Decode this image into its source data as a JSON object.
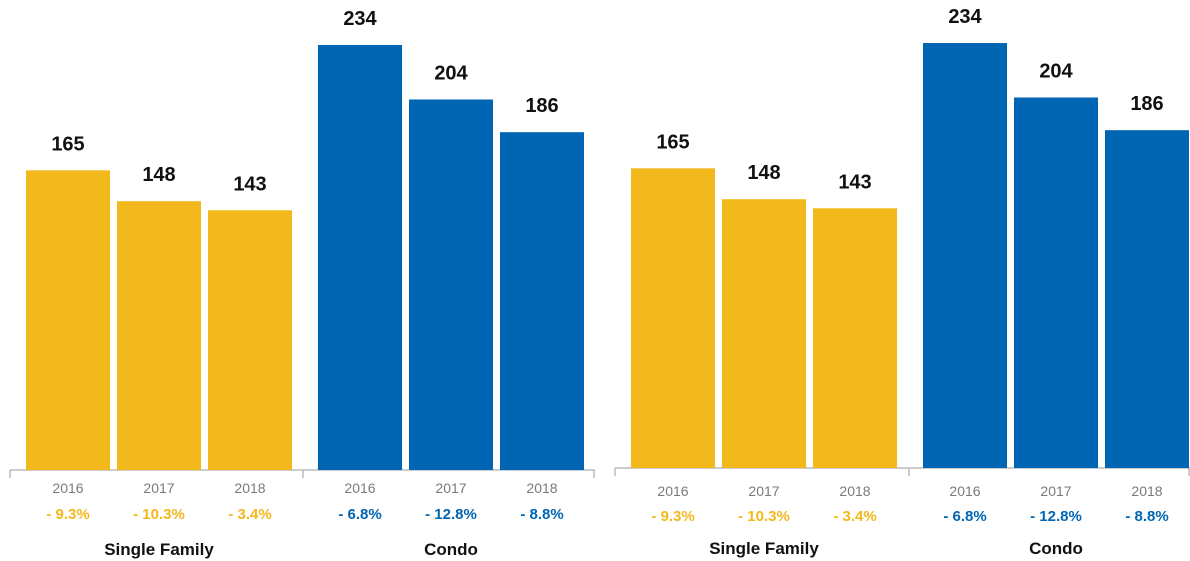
{
  "colors": {
    "single_family": "#F2B81C",
    "condo": "#0066B3",
    "axis": "#BBBBBB"
  },
  "chart_data": [
    {
      "type": "bar",
      "ylim": [
        0,
        260
      ],
      "groups": [
        {
          "name": "Single Family",
          "color": "#F2B81C",
          "categories": [
            "2016",
            "2017",
            "2018"
          ],
          "values": [
            165,
            148,
            143
          ],
          "value_labels": [
            "165",
            "148",
            "143"
          ],
          "changes": [
            "- 9.3%",
            "- 10.3%",
            "- 3.4%"
          ]
        },
        {
          "name": "Condo",
          "color": "#0066B3",
          "categories": [
            "2016",
            "2017",
            "2018"
          ],
          "values": [
            234,
            204,
            186
          ],
          "value_labels": [
            "234",
            "204",
            "186"
          ],
          "changes": [
            "- 6.8%",
            "- 12.8%",
            "- 8.8%"
          ]
        }
      ]
    },
    {
      "type": "bar",
      "ylim": [
        0,
        260
      ],
      "groups": [
        {
          "name": "Single Family",
          "color": "#F2B81C",
          "categories": [
            "2016",
            "2017",
            "2018"
          ],
          "values": [
            165,
            148,
            143
          ],
          "value_labels": [
            "165",
            "148",
            "143"
          ],
          "changes": [
            "- 9.3%",
            "- 10.3%",
            "- 3.4%"
          ]
        },
        {
          "name": "Condo",
          "color": "#0066B3",
          "categories": [
            "2016",
            "2017",
            "2018"
          ],
          "values": [
            234,
            204,
            186
          ],
          "value_labels": [
            "234",
            "204",
            "186"
          ],
          "changes": [
            "- 6.8%",
            "- 12.8%",
            "- 8.8%"
          ]
        }
      ]
    }
  ]
}
